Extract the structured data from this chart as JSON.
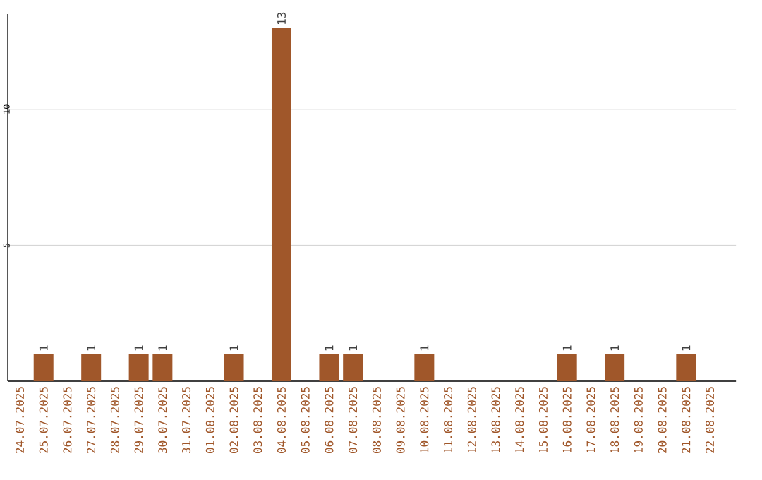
{
  "chart_data": {
    "type": "bar",
    "categories": [
      "24.07.2025",
      "25.07.2025",
      "26.07.2025",
      "27.07.2025",
      "28.07.2025",
      "29.07.2025",
      "30.07.2025",
      "31.07.2025",
      "01.08.2025",
      "02.08.2025",
      "03.08.2025",
      "04.08.2025",
      "05.08.2025",
      "06.08.2025",
      "07.08.2025",
      "08.08.2025",
      "09.08.2025",
      "10.08.2025",
      "11.08.2025",
      "12.08.2025",
      "13.08.2025",
      "14.08.2025",
      "15.08.2025",
      "16.08.2025",
      "17.08.2025",
      "18.08.2025",
      "19.08.2025",
      "20.08.2025",
      "21.08.2025",
      "22.08.2025"
    ],
    "values": [
      0,
      1,
      0,
      1,
      0,
      1,
      1,
      0,
      0,
      1,
      0,
      13,
      0,
      1,
      1,
      0,
      0,
      1,
      0,
      0,
      0,
      0,
      0,
      1,
      0,
      1,
      0,
      0,
      1,
      0
    ],
    "value_labels": [
      null,
      "1",
      null,
      "1",
      null,
      "1",
      "1",
      null,
      null,
      "1",
      null,
      "13",
      null,
      "1",
      "1",
      null,
      null,
      "1",
      null,
      null,
      null,
      null,
      null,
      "1",
      null,
      "1",
      null,
      null,
      "1",
      null
    ],
    "color": "#a0572a",
    "ylim": [
      0,
      13.5
    ],
    "yticks": [
      5,
      10
    ],
    "grid": "y"
  }
}
